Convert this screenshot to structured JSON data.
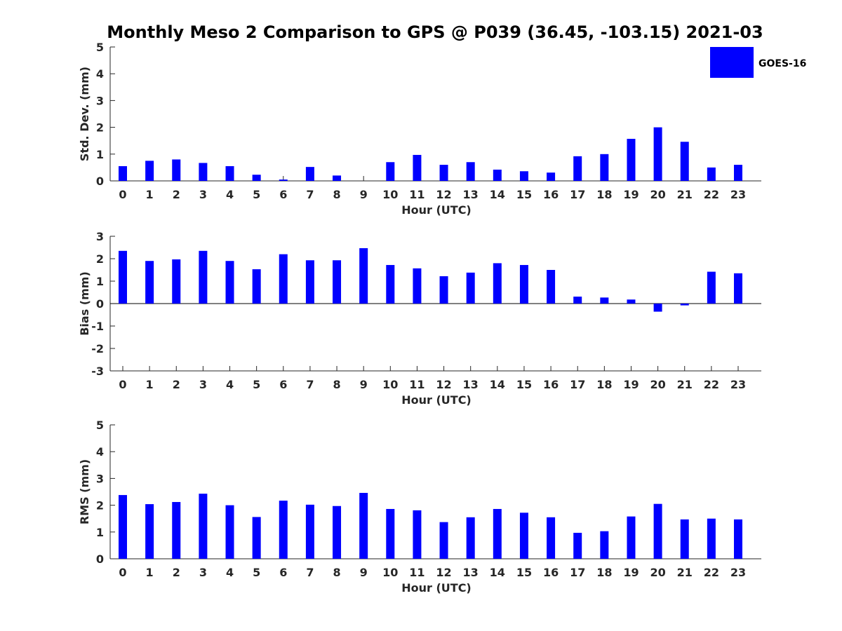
{
  "chart_data": [
    {
      "type": "bar",
      "title": "Monthly Meso 2 Comparison to GPS @ P039 (36.45, -103.15) 2021-03",
      "xlabel": "Hour (UTC)",
      "ylabel": "Std. Dev. (mm)",
      "ylim": [
        0,
        5
      ],
      "yticks": [
        "0",
        "1",
        "2",
        "3",
        "4",
        "5"
      ],
      "categories": [
        "0",
        "1",
        "2",
        "3",
        "4",
        "5",
        "6",
        "7",
        "8",
        "9",
        "10",
        "11",
        "12",
        "13",
        "14",
        "15",
        "16",
        "17",
        "18",
        "19",
        "20",
        "21",
        "22",
        "23"
      ],
      "series": [
        {
          "name": "GOES-16",
          "color": "#0000ff",
          "values": [
            0.55,
            0.75,
            0.8,
            0.67,
            0.55,
            0.23,
            0.05,
            0.52,
            0.2,
            0.0,
            0.7,
            0.97,
            0.6,
            0.7,
            0.42,
            0.36,
            0.31,
            0.92,
            1.0,
            1.57,
            2.0,
            1.46,
            0.5,
            0.6
          ]
        }
      ],
      "legend": {
        "entries": [
          "GOES-16"
        ],
        "placement": "top-right"
      }
    },
    {
      "type": "bar",
      "xlabel": "Hour (UTC)",
      "ylabel": "Bias (mm)",
      "ylim": [
        -3,
        3
      ],
      "yticks": [
        "-3",
        "-2",
        "-1",
        "0",
        "1",
        "2",
        "3"
      ],
      "categories": [
        "0",
        "1",
        "2",
        "3",
        "4",
        "5",
        "6",
        "7",
        "8",
        "9",
        "10",
        "11",
        "12",
        "13",
        "14",
        "15",
        "16",
        "17",
        "18",
        "19",
        "20",
        "21",
        "22",
        "23"
      ],
      "series": [
        {
          "name": "GOES-16",
          "color": "#0000ff",
          "values": [
            2.35,
            1.9,
            1.97,
            2.35,
            1.9,
            1.53,
            2.2,
            1.93,
            1.93,
            2.47,
            1.72,
            1.57,
            1.22,
            1.38,
            1.8,
            1.72,
            1.5,
            0.31,
            0.27,
            0.18,
            -0.36,
            -0.08,
            1.42,
            1.35
          ]
        }
      ]
    },
    {
      "type": "bar",
      "xlabel": "Hour (UTC)",
      "ylabel": "RMS (mm)",
      "ylim": [
        0,
        5
      ],
      "yticks": [
        "0",
        "1",
        "2",
        "3",
        "4",
        "5"
      ],
      "categories": [
        "0",
        "1",
        "2",
        "3",
        "4",
        "5",
        "6",
        "7",
        "8",
        "9",
        "10",
        "11",
        "12",
        "13",
        "14",
        "15",
        "16",
        "17",
        "18",
        "19",
        "20",
        "21",
        "22",
        "23"
      ],
      "series": [
        {
          "name": "GOES-16",
          "color": "#0000ff",
          "values": [
            2.38,
            2.04,
            2.12,
            2.43,
            2.0,
            1.56,
            2.17,
            2.02,
            1.97,
            2.46,
            1.86,
            1.81,
            1.37,
            1.55,
            1.86,
            1.72,
            1.55,
            0.97,
            1.03,
            1.58,
            2.05,
            1.47,
            1.5,
            1.47
          ]
        }
      ]
    }
  ]
}
